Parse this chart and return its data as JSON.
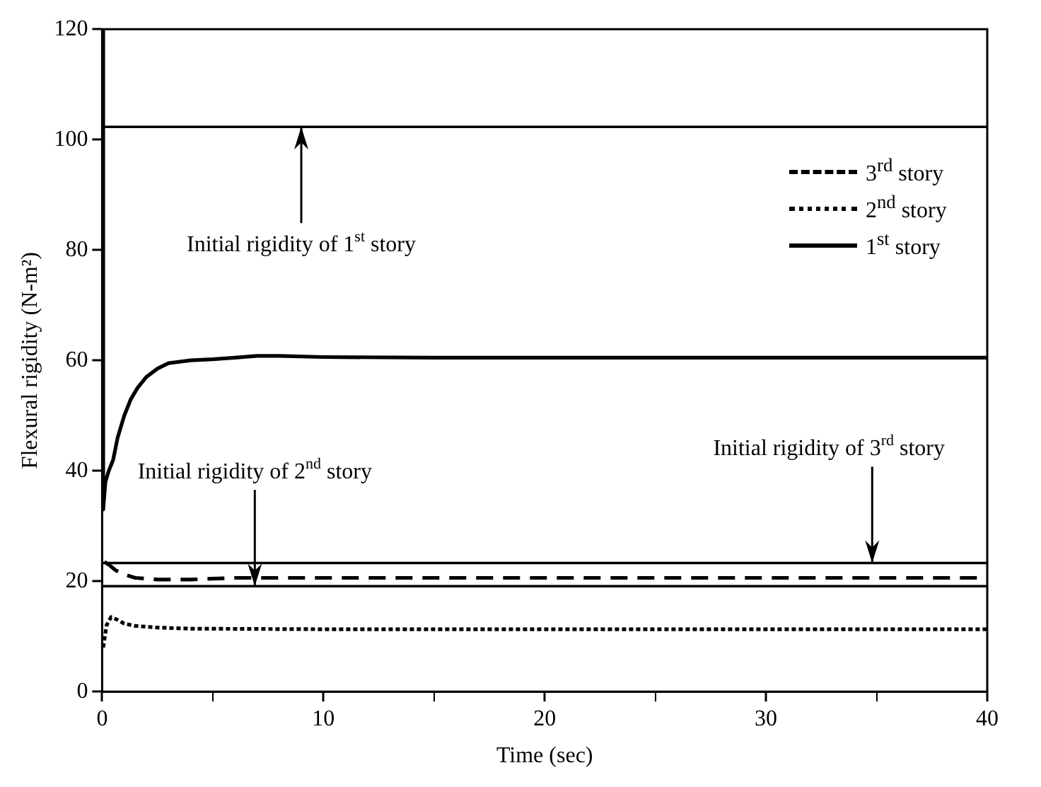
{
  "chart_data": {
    "type": "line",
    "xlabel": "Time (sec)",
    "ylabel": "Flexural rigidity (N-m²)",
    "xlim": [
      0,
      40
    ],
    "ylim": [
      0,
      120
    ],
    "xticks": [
      0,
      {
        "value": 5,
        "label": null
      },
      10,
      {
        "value": 15,
        "label": null
      },
      20,
      {
        "value": 25,
        "label": null
      },
      30,
      {
        "value": 35,
        "label": null
      },
      40
    ],
    "yticks": [
      0,
      20,
      40,
      60,
      80,
      100,
      120
    ],
    "grid": false,
    "legend": "top right",
    "marker": "none",
    "series": [
      {
        "name": "3$^{rd}$ story",
        "color": "#000000",
        "line_style": "dashed",
        "x": [
          0.1,
          0.3,
          0.6,
          1.0,
          1.5,
          2.5,
          4,
          6,
          10,
          20,
          30,
          40
        ],
        "values": [
          23.5,
          23,
          22,
          21.2,
          20.6,
          20.3,
          20.3,
          20.6,
          20.6,
          20.6,
          20.6,
          20.6
        ]
      },
      {
        "name": "2$^{nd}$ story",
        "color": "#000000",
        "line_style": "dotted",
        "x": [
          0.05,
          0.2,
          0.4,
          0.7,
          1.0,
          1.5,
          2.5,
          4,
          10,
          20,
          30,
          40
        ],
        "values": [
          8,
          12,
          13.5,
          13,
          12.3,
          11.9,
          11.6,
          11.4,
          11.3,
          11.3,
          11.3,
          11.3
        ]
      },
      {
        "name": "1$^{st}$ story",
        "color": "#000000",
        "line_style": "solid",
        "x": [
          0,
          0.05,
          0.15,
          0.3,
          0.5,
          0.7,
          1.0,
          1.3,
          1.6,
          2.0,
          2.5,
          3.0,
          4.0,
          5,
          6,
          7,
          8,
          10,
          15,
          20,
          25,
          30,
          35,
          40
        ],
        "values": [
          120,
          33,
          38,
          40,
          42,
          46,
          50,
          53,
          55,
          57,
          58.5,
          59.5,
          60,
          60.2,
          60.5,
          60.8,
          60.8,
          60.6,
          60.5,
          60.5,
          60.5,
          60.5,
          60.5,
          60.5
        ]
      }
    ],
    "ref_lines": [
      {
        "axis": "y",
        "value": 102.3,
        "color": "#000000"
      },
      {
        "axis": "y",
        "value": 23.3,
        "color": "#000000"
      },
      {
        "axis": "y",
        "value": 19.1,
        "color": "#000000"
      }
    ],
    "annotations": [
      {
        "text": "Initial rigidity of 1$^{st}$ story",
        "x": 9,
        "y": 102.3
      },
      {
        "text": "Initial rigidity of 2$^{nd}$ story",
        "x": 6.9,
        "y": 19.1
      },
      {
        "text": "Initial rigidity of 3$^{rd}$ story",
        "x": 34.8,
        "y": 23.3
      }
    ]
  }
}
